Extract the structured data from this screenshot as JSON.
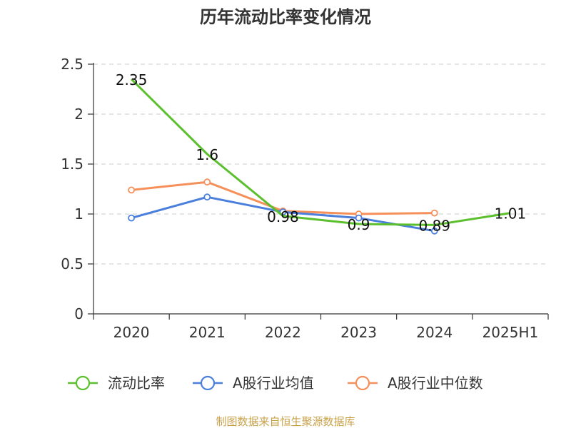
{
  "chart_data": {
    "type": "line",
    "title": "历年流动比率变化情况",
    "categories": [
      "2020",
      "2021",
      "2022",
      "2023",
      "2024",
      "2025H1"
    ],
    "ylim": [
      0,
      2.5
    ],
    "yticks": [
      "0",
      "0.5",
      "1",
      "1.5",
      "2",
      "2.5"
    ],
    "grid": true,
    "legend_position": "bottom",
    "series": [
      {
        "name": "流动比率",
        "color": "#5cc02e",
        "values": [
          2.35,
          1.6,
          0.98,
          0.9,
          0.89,
          1.01
        ],
        "labels": [
          "2.35",
          "1.6",
          "0.98",
          "0.9",
          "0.89",
          "1.01"
        ]
      },
      {
        "name": "A股行业均值",
        "color": "#4a7fdc",
        "values": [
          0.96,
          1.17,
          1.02,
          0.96,
          0.83,
          null
        ]
      },
      {
        "name": "A股行业中位数",
        "color": "#f5905a",
        "values": [
          1.24,
          1.32,
          1.03,
          1.0,
          1.01,
          null
        ]
      }
    ],
    "source": "制图数据来自恒生聚源数据库"
  }
}
